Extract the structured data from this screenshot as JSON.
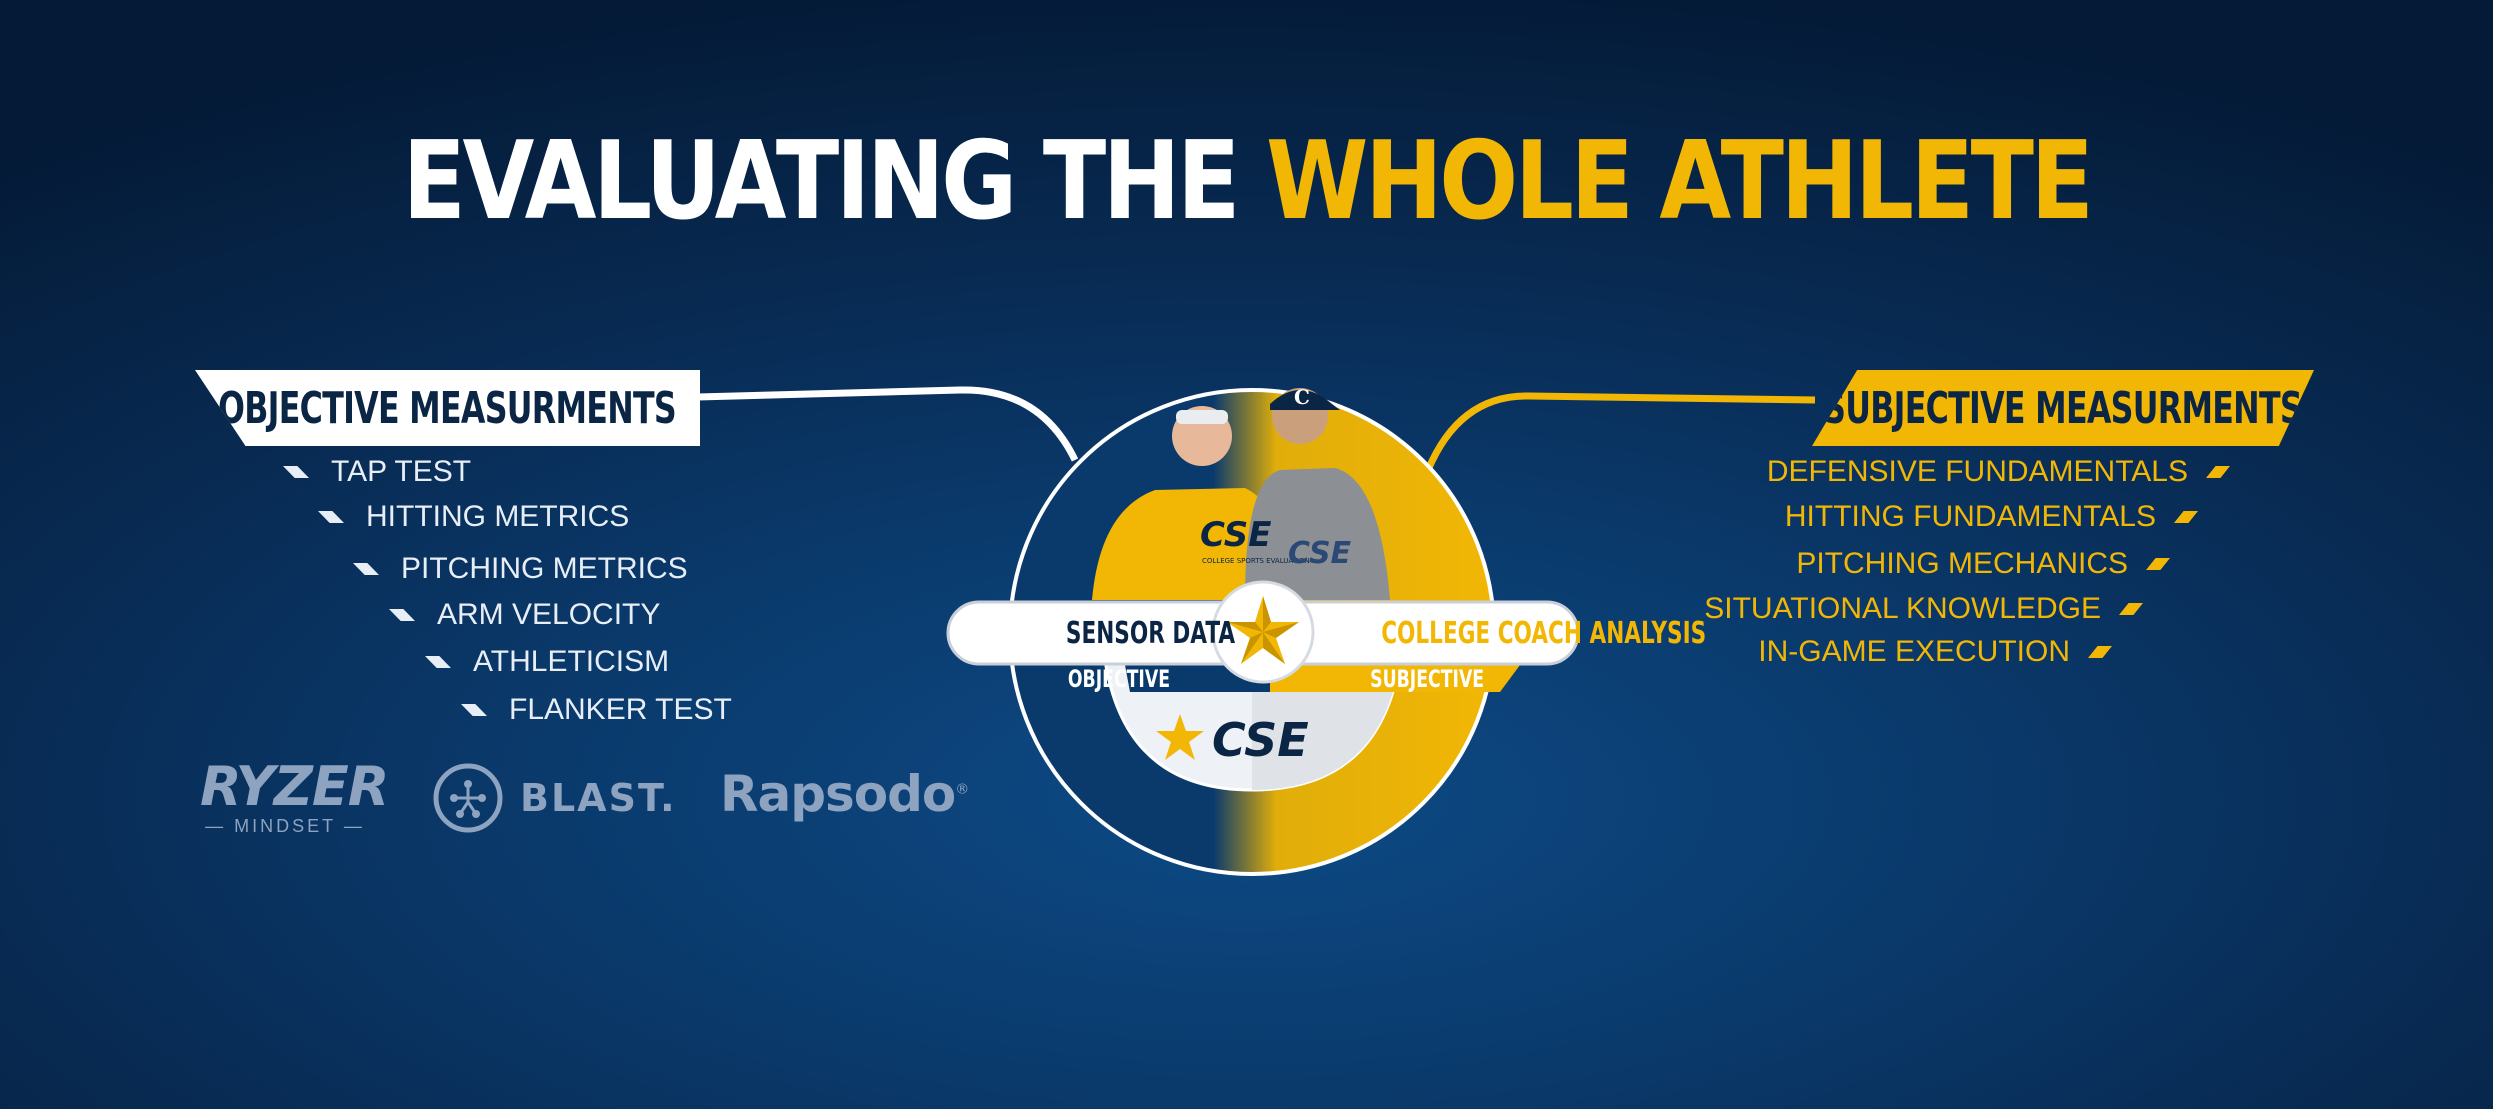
{
  "title": {
    "part_white": "EVALUATING THE",
    "part_yellow": "WHOLE ATHLETE"
  },
  "objective": {
    "badge": "OBJECTIVE MEASURMENTS",
    "items": [
      "TAP TEST",
      "HITTING METRICS",
      "PITCHING METRICS",
      "ARM VELOCITY",
      "ATHLETICISM",
      "FLANKER TEST"
    ]
  },
  "subjective": {
    "badge": "SUBJECTIVE MEASURMENTS",
    "items": [
      "DEFENSIVE FUNDAMENTALS",
      "HITTING FUNDAMENTALS",
      "PITCHING MECHANICS",
      "SITUATIONAL KNOWLEDGE",
      "IN-GAME EXECUTION"
    ]
  },
  "center": {
    "left_label": "SENSOR DATA",
    "left_sub": "OBJECTIVE",
    "right_label": "COLLEGE COACH ANALYSIS",
    "right_sub": "SUBJECTIVE",
    "logo_text": "CSE",
    "shirt_text": "CSE",
    "shirt_sub": "COLLEGE SPORTS EVALUATION",
    "cap_letter": "C"
  },
  "partners": {
    "ryzer": "RYZER",
    "ryzer_sub": "MINDSET",
    "blast": "BLAST.",
    "rapsodo": "Rapsodo",
    "rapsodo_mark": "®"
  },
  "colors": {
    "gold": "#f2b705",
    "navy": "#0b2545",
    "bg": "#0a3a6c"
  }
}
